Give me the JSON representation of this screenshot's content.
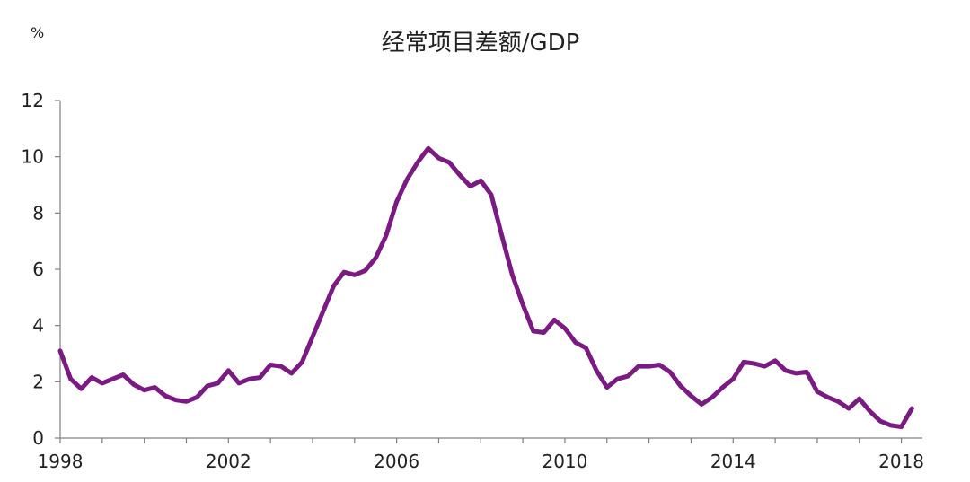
{
  "chart_data": {
    "type": "line",
    "title": "经常项目差额/GDP",
    "ylabel": "%",
    "xlabel": "",
    "xlim": [
      1998,
      2018.5
    ],
    "ylim": [
      0,
      12
    ],
    "yticks": [
      0,
      2,
      4,
      6,
      8,
      10,
      12
    ],
    "xticks": [
      1998,
      2002,
      2006,
      2010,
      2014,
      2018
    ],
    "grid": false,
    "series_color": "#7b1a82",
    "x": [
      1998.0,
      1998.25,
      1998.5,
      1998.75,
      1999.0,
      1999.25,
      1999.5,
      1999.75,
      2000.0,
      2000.25,
      2000.5,
      2000.75,
      2001.0,
      2001.25,
      2001.5,
      2001.75,
      2002.0,
      2002.25,
      2002.5,
      2002.75,
      2003.0,
      2003.25,
      2003.5,
      2003.75,
      2004.0,
      2004.25,
      2004.5,
      2004.75,
      2005.0,
      2005.25,
      2005.5,
      2005.75,
      2006.0,
      2006.25,
      2006.5,
      2006.75,
      2007.0,
      2007.25,
      2007.5,
      2007.75,
      2008.0,
      2008.25,
      2008.5,
      2008.75,
      2009.0,
      2009.25,
      2009.5,
      2009.75,
      2010.0,
      2010.25,
      2010.5,
      2010.75,
      2011.0,
      2011.25,
      2011.5,
      2011.75,
      2012.0,
      2012.25,
      2012.5,
      2012.75,
      2013.0,
      2013.25,
      2013.5,
      2013.75,
      2014.0,
      2014.25,
      2014.5,
      2014.75,
      2015.0,
      2015.25,
      2015.5,
      2015.75,
      2016.0,
      2016.25,
      2016.5,
      2016.75,
      2017.0,
      2017.25,
      2017.5,
      2017.75,
      2018.0,
      2018.25
    ],
    "series": [
      {
        "values": [
          3.1,
          2.1,
          1.75,
          2.15,
          1.95,
          2.1,
          2.25,
          1.9,
          1.7,
          1.8,
          1.5,
          1.35,
          1.3,
          1.45,
          1.85,
          1.95,
          2.4,
          1.95,
          2.1,
          2.15,
          2.6,
          2.55,
          2.3,
          2.7,
          3.6,
          4.5,
          5.4,
          5.9,
          5.8,
          5.95,
          6.4,
          7.2,
          8.4,
          9.2,
          9.8,
          10.3,
          9.95,
          9.8,
          9.35,
          8.95,
          9.15,
          8.65,
          7.2,
          5.8,
          4.75,
          3.8,
          3.75,
          4.2,
          3.9,
          3.4,
          3.2,
          2.4,
          1.8,
          2.1,
          2.2,
          2.55,
          2.55,
          2.6,
          2.35,
          1.85,
          1.5,
          1.2,
          1.45,
          1.8,
          2.1,
          2.7,
          2.65,
          2.55,
          2.75,
          2.4,
          2.3,
          2.35,
          1.65,
          1.45,
          1.3,
          1.05,
          1.4,
          0.95,
          0.6,
          0.45,
          0.4,
          1.05
        ]
      }
    ]
  }
}
